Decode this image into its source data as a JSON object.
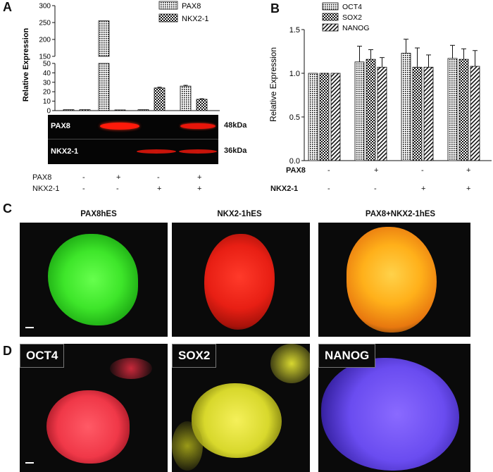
{
  "panels": {
    "a": "A",
    "b": "B",
    "c": "C",
    "d": "D"
  },
  "panel_a": {
    "ylabel": "Relative Expression",
    "legend": [
      "PAX8",
      "NKX2-1"
    ],
    "upper_ticks": [
      "150",
      "200",
      "250",
      "300"
    ],
    "lower_ticks": [
      "0",
      "10",
      "20",
      "30",
      "40",
      "50"
    ],
    "blot_rows": [
      "PAX8",
      "NKX2-1"
    ],
    "blot_sizes": [
      "48kDa",
      "36kDa"
    ],
    "conditions": [
      {
        "label": "PAX8",
        "values": [
          "-",
          "+",
          "-",
          "+"
        ]
      },
      {
        "label": "NKX2-1",
        "values": [
          "-",
          "-",
          "+",
          "+"
        ]
      }
    ]
  },
  "panel_b": {
    "ylabel": "Relative Expression",
    "legend": [
      "OCT4",
      "SOX2",
      "NANOG"
    ],
    "ticks": [
      "0.0",
      "0.5",
      "1.0",
      "1.5"
    ],
    "conditions": [
      {
        "label": "PAX8",
        "values": [
          "-",
          "+",
          "-",
          "+"
        ]
      },
      {
        "label": "NKX2-1",
        "values": [
          "-",
          "-",
          "+",
          "+"
        ]
      }
    ]
  },
  "panel_c": {
    "titles": [
      "PAX8hES",
      "NKX2-1hES",
      "PAX8+NKX2-1hES"
    ]
  },
  "panel_d": {
    "labels": [
      "OCT4",
      "SOX2",
      "NANOG"
    ]
  },
  "chart_data": [
    {
      "type": "bar",
      "categories": [
        "1",
        "2",
        "3",
        "4"
      ],
      "series": [
        {
          "name": "PAX8",
          "values": [
            1,
            255,
            1,
            26
          ],
          "error": [
            0,
            0,
            0,
            0.8
          ]
        },
        {
          "name": "NKX2-1",
          "values": [
            1,
            0.5,
            24,
            12
          ],
          "error": [
            0,
            0,
            0.8,
            0.6
          ]
        }
      ],
      "ylabel": "Relative Expression",
      "ylim": [
        0,
        300
      ],
      "axis_break": [
        50,
        150
      ]
    },
    {
      "type": "bar",
      "categories": [
        "1",
        "2",
        "3",
        "4"
      ],
      "series": [
        {
          "name": "OCT4",
          "values": [
            1.0,
            1.13,
            1.23,
            1.17
          ],
          "error": [
            0,
            0.18,
            0.16,
            0.15
          ]
        },
        {
          "name": "SOX2",
          "values": [
            1.0,
            1.16,
            1.07,
            1.16
          ],
          "error": [
            0,
            0.11,
            0.22,
            0.12
          ]
        },
        {
          "name": "NANOG",
          "values": [
            1.0,
            1.07,
            1.07,
            1.08
          ],
          "error": [
            0,
            0.11,
            0.14,
            0.18
          ]
        }
      ],
      "ylabel": "Relative Expression",
      "ylim": [
        0,
        1.5
      ]
    }
  ]
}
